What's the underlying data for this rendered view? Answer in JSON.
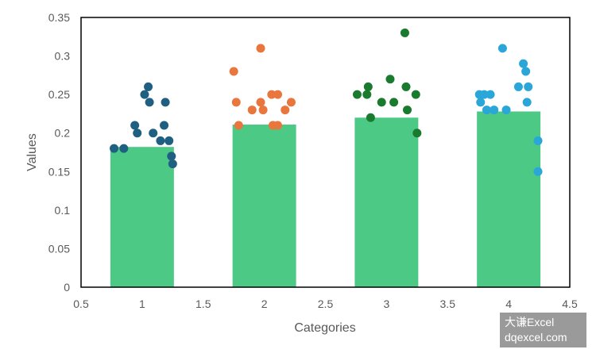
{
  "chart_data": {
    "type": "bar+scatter",
    "xlabel": "Categories",
    "ylabel": "Values",
    "xlim": [
      0.5,
      4.5
    ],
    "ylim": [
      0,
      0.35
    ],
    "xticks": [
      "0.5",
      "1",
      "1.5",
      "2",
      "2.5",
      "3",
      "3.5",
      "4",
      "4.5"
    ],
    "yticks": [
      "0",
      "0.05",
      "0.1",
      "0.15",
      "0.2",
      "0.25",
      "0.3",
      "0.35"
    ],
    "grid": false,
    "bars": {
      "x": [
        1,
        2,
        3,
        4
      ],
      "values": [
        0.182,
        0.211,
        0.22,
        0.228
      ],
      "width": 0.52,
      "color": "#4cc985"
    },
    "series": [
      {
        "color": "#1f5f82",
        "points": [
          [
            0.77,
            0.18
          ],
          [
            0.85,
            0.18
          ],
          [
            0.94,
            0.21
          ],
          [
            0.96,
            0.2
          ],
          [
            1.02,
            0.25
          ],
          [
            1.05,
            0.26
          ],
          [
            1.06,
            0.24
          ],
          [
            1.09,
            0.2
          ],
          [
            1.15,
            0.19
          ],
          [
            1.18,
            0.21
          ],
          [
            1.19,
            0.24
          ],
          [
            1.22,
            0.19
          ],
          [
            1.24,
            0.17
          ],
          [
            1.25,
            0.16
          ]
        ]
      },
      {
        "color": "#e8763d",
        "points": [
          [
            1.75,
            0.28
          ],
          [
            1.77,
            0.24
          ],
          [
            1.79,
            0.21
          ],
          [
            1.9,
            0.23
          ],
          [
            1.97,
            0.24
          ],
          [
            1.97,
            0.31
          ],
          [
            1.99,
            0.23
          ],
          [
            2.06,
            0.25
          ],
          [
            2.07,
            0.21
          ],
          [
            2.11,
            0.25
          ],
          [
            2.11,
            0.21
          ],
          [
            2.17,
            0.23
          ],
          [
            2.22,
            0.24
          ]
        ]
      },
      {
        "color": "#1a7a2e",
        "points": [
          [
            2.76,
            0.25
          ],
          [
            2.84,
            0.25
          ],
          [
            2.85,
            0.26
          ],
          [
            2.87,
            0.22
          ],
          [
            2.96,
            0.24
          ],
          [
            3.03,
            0.27
          ],
          [
            3.06,
            0.24
          ],
          [
            3.15,
            0.33
          ],
          [
            3.16,
            0.26
          ],
          [
            3.17,
            0.23
          ],
          [
            3.24,
            0.25
          ],
          [
            3.25,
            0.2
          ]
        ]
      },
      {
        "color": "#2aa6d8",
        "points": [
          [
            3.76,
            0.25
          ],
          [
            3.77,
            0.24
          ],
          [
            3.8,
            0.25
          ],
          [
            3.82,
            0.23
          ],
          [
            3.85,
            0.25
          ],
          [
            3.88,
            0.23
          ],
          [
            3.95,
            0.31
          ],
          [
            3.98,
            0.23
          ],
          [
            4.08,
            0.26
          ],
          [
            4.12,
            0.29
          ],
          [
            4.14,
            0.28
          ],
          [
            4.15,
            0.24
          ],
          [
            4.16,
            0.26
          ],
          [
            4.24,
            0.19
          ],
          [
            4.24,
            0.15
          ]
        ]
      }
    ]
  },
  "watermark": {
    "line1": "大谦Excel",
    "line2": "dqexcel.com"
  }
}
